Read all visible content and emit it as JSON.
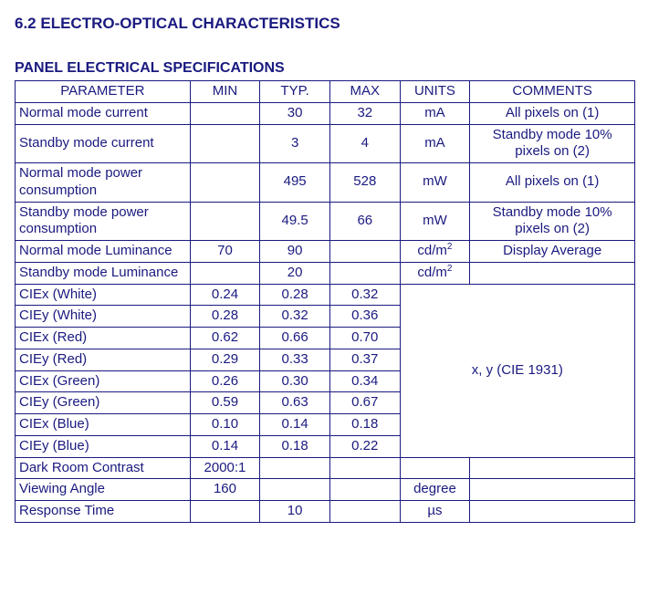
{
  "heading": "6.2 ELECTRO-OPTICAL CHARACTERISTICS",
  "subheading": "PANEL ELECTRICAL SPECIFICATIONS",
  "columns": {
    "param": "PARAMETER",
    "min": "MIN",
    "typ": "TYP.",
    "max": "MAX",
    "units": "UNITS",
    "comments": "COMMENTS"
  },
  "rows": {
    "r0": {
      "param": "Normal mode current",
      "min": "",
      "typ": "30",
      "max": "32",
      "units": "mA",
      "comment": "All pixels on (1)"
    },
    "r1": {
      "param": "Standby mode current",
      "min": "",
      "typ": "3",
      "max": "4",
      "units": "mA",
      "comment": "Standby mode 10% pixels on (2)"
    },
    "r2": {
      "param": "Normal mode power consumption",
      "min": "",
      "typ": "495",
      "max": "528",
      "units": "mW",
      "comment": "All pixels on (1)"
    },
    "r3": {
      "param": "Standby mode power consumption",
      "min": "",
      "typ": "49.5",
      "max": "66",
      "units": "mW",
      "comment": "Standby mode 10% pixels on (2)"
    },
    "r4": {
      "param": "Normal mode Luminance",
      "min": "70",
      "typ": "90",
      "max": "",
      "units": "cd/m",
      "comment": "Display Average"
    },
    "r5": {
      "param": "Standby mode Luminance",
      "min": "",
      "typ": "20",
      "max": "",
      "units": "cd/m",
      "comment": ""
    },
    "r6": {
      "param": "CIEx (White)",
      "min": "0.24",
      "typ": "0.28",
      "max": "0.32"
    },
    "r7": {
      "param": "CIEy (White)",
      "min": "0.28",
      "typ": "0.32",
      "max": "0.36"
    },
    "r8": {
      "param": "CIEx (Red)",
      "min": "0.62",
      "typ": "0.66",
      "max": "0.70"
    },
    "r9": {
      "param": "CIEy (Red)",
      "min": "0.29",
      "typ": "0.33",
      "max": "0.37"
    },
    "r10": {
      "param": "CIEx (Green)",
      "min": "0.26",
      "typ": "0.30",
      "max": "0.34"
    },
    "r11": {
      "param": "CIEy (Green)",
      "min": "0.59",
      "typ": "0.63",
      "max": "0.67"
    },
    "r12": {
      "param": "CIEx (Blue)",
      "min": "0.10",
      "typ": "0.14",
      "max": "0.18"
    },
    "r13": {
      "param": "CIEy (Blue)",
      "min": "0.14",
      "typ": "0.18",
      "max": "0.22"
    },
    "cie_comment": "x, y (CIE 1931)",
    "r14": {
      "param": "Dark Room Contrast",
      "min": "2000:1",
      "typ": "",
      "max": "",
      "units": "",
      "comment": ""
    },
    "r15": {
      "param": "Viewing Angle",
      "min": "160",
      "typ": "",
      "max": "",
      "units": "degree",
      "comment": ""
    },
    "r16": {
      "param": "Response Time",
      "min": "",
      "typ": "10",
      "max": "",
      "units": "µs",
      "comment": ""
    }
  },
  "style": {
    "text_color": "#1a1a80",
    "border_color": "#1a1a80",
    "background_color": "#ffffff",
    "font_family": "Arial",
    "heading_fontsize": 17,
    "body_fontsize": 15
  }
}
